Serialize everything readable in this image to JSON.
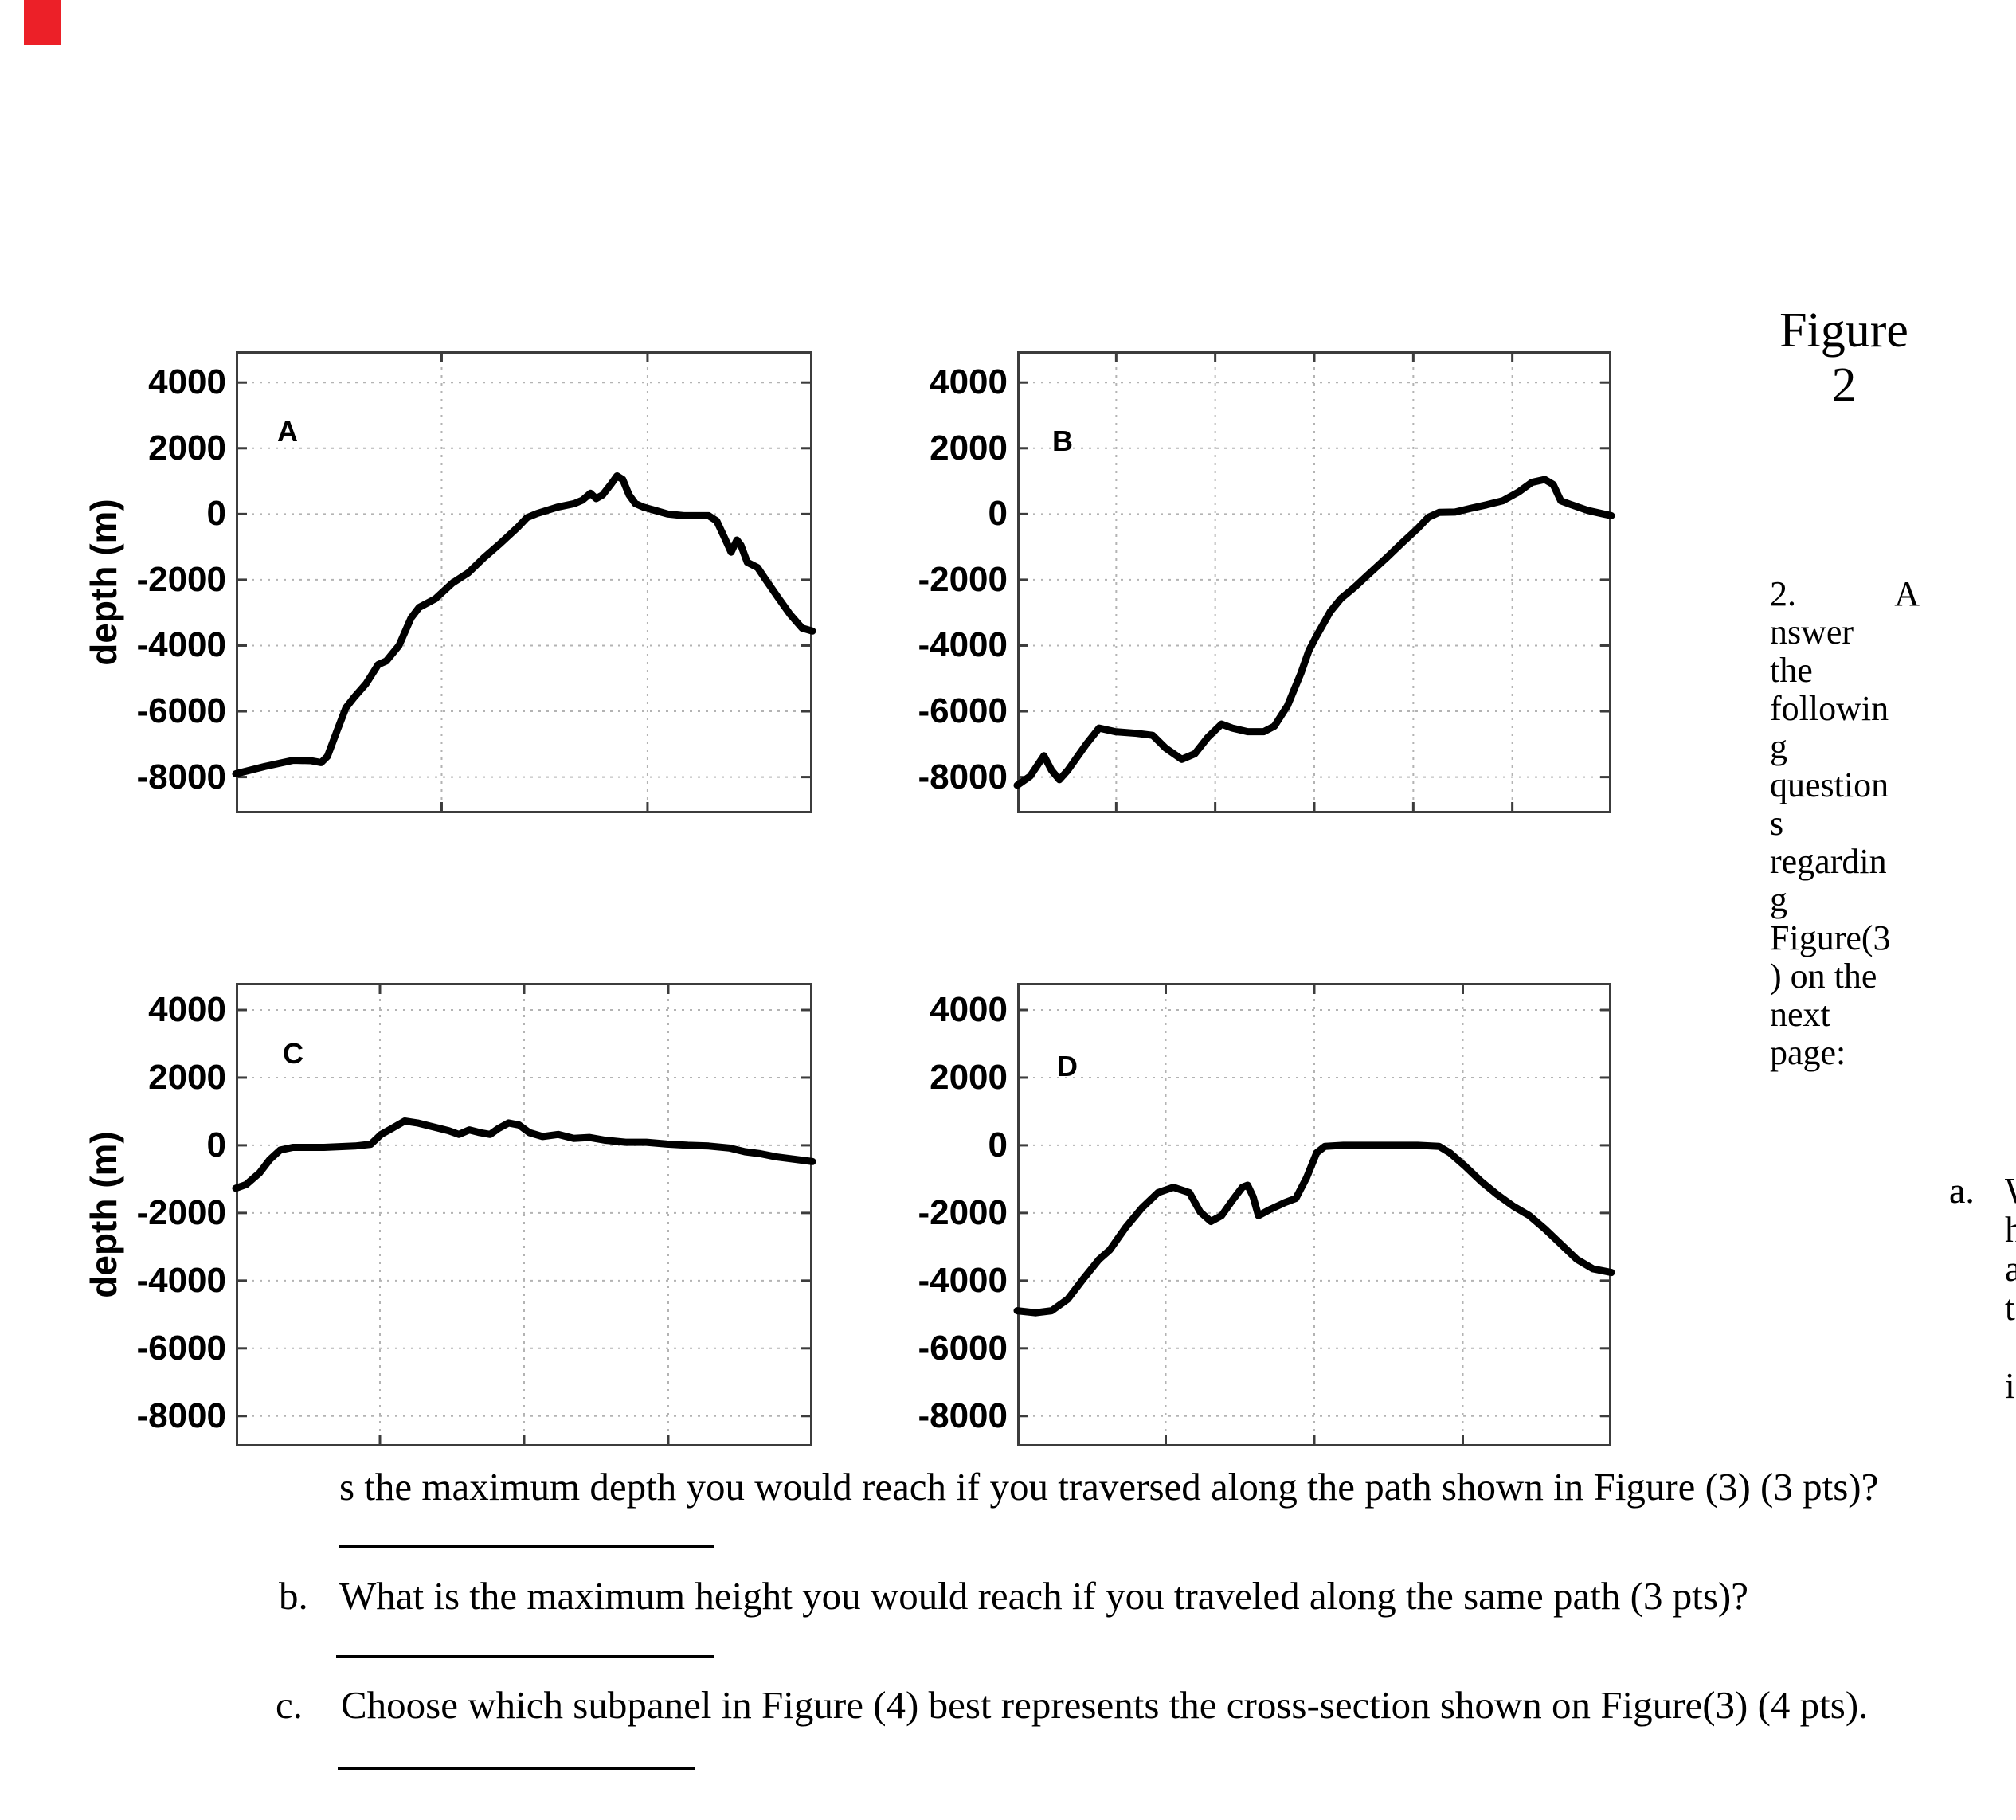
{
  "page": {
    "background": "#ffffff",
    "red_marker_color": "#ec2028",
    "curve_color": "#000000",
    "grid_color": "#b3b3b3",
    "frame_color": "#3c3c3c"
  },
  "figure_heading": {
    "line1": "Figure",
    "line2": "2"
  },
  "side_note": {
    "line1_left": "2.",
    "line1_right": "A",
    "lines": [
      "nswer",
      "the",
      "followin",
      "g",
      "question",
      "s",
      "regardin",
      "g",
      "Figure(3",
      ") on the",
      "next",
      "page:"
    ]
  },
  "item_a_marker": "a.",
  "edge_fragments": {
    "lines": [
      "W",
      "h",
      "a",
      "t",
      "",
      "i"
    ]
  },
  "questions": {
    "a_continuation": "s the maximum depth you would reach if you traversed along the path shown in Figure (3) (3 pts)?",
    "b_marker": "b.",
    "b_text": "What is the maximum height you would reach if you traveled along the same path (3 pts)?",
    "c_marker": "c.",
    "c_text": "Choose which subpanel in Figure (4) best represents the cross-section shown on Figure(3) (4 pts)."
  },
  "chart_data": [
    {
      "type": "line",
      "panel": "A",
      "ylabel": "depth (m)",
      "yticks": [
        4000,
        2000,
        0,
        -2000,
        -4000,
        -6000,
        -8000
      ],
      "ylim": [
        -9100,
        4950
      ],
      "x_gridlines": [
        0.357,
        0.714
      ],
      "grid": "dotted",
      "points": [
        [
          0,
          -7900
        ],
        [
          0.05,
          -7680
        ],
        [
          0.1,
          -7490
        ],
        [
          0.13,
          -7500
        ],
        [
          0.148,
          -7560
        ],
        [
          0.159,
          -7370
        ],
        [
          0.177,
          -6530
        ],
        [
          0.191,
          -5890
        ],
        [
          0.205,
          -5580
        ],
        [
          0.226,
          -5160
        ],
        [
          0.247,
          -4580
        ],
        [
          0.261,
          -4470
        ],
        [
          0.283,
          -4000
        ],
        [
          0.304,
          -3160
        ],
        [
          0.318,
          -2840
        ],
        [
          0.346,
          -2580
        ],
        [
          0.375,
          -2110
        ],
        [
          0.403,
          -1790
        ],
        [
          0.431,
          -1320
        ],
        [
          0.459,
          -890
        ],
        [
          0.488,
          -420
        ],
        [
          0.505,
          -110
        ],
        [
          0.523,
          20
        ],
        [
          0.558,
          210
        ],
        [
          0.587,
          315
        ],
        [
          0.601,
          420
        ],
        [
          0.615,
          630
        ],
        [
          0.625,
          470
        ],
        [
          0.636,
          580
        ],
        [
          0.65,
          890
        ],
        [
          0.661,
          1160
        ],
        [
          0.671,
          1050
        ],
        [
          0.682,
          580
        ],
        [
          0.693,
          315
        ],
        [
          0.707,
          210
        ],
        [
          0.728,
          105
        ],
        [
          0.749,
          0
        ],
        [
          0.777,
          -50
        ],
        [
          0.82,
          -50
        ],
        [
          0.834,
          -210
        ],
        [
          0.848,
          -740
        ],
        [
          0.859,
          -1160
        ],
        [
          0.869,
          -790
        ],
        [
          0.876,
          -950
        ],
        [
          0.887,
          -1470
        ],
        [
          0.905,
          -1630
        ],
        [
          0.919,
          -2000
        ],
        [
          0.94,
          -2530
        ],
        [
          0.961,
          -3050
        ],
        [
          0.982,
          -3470
        ],
        [
          1,
          -3560
        ]
      ]
    },
    {
      "type": "line",
      "panel": "B",
      "ylabel": "",
      "yticks": [
        4000,
        2000,
        0,
        -2000,
        -4000,
        -6000,
        -8000
      ],
      "ylim": [
        -9100,
        4950
      ],
      "x_gridlines": [
        0.1667,
        0.3333,
        0.5,
        0.6667,
        0.8333
      ],
      "grid": "dotted",
      "points": [
        [
          0,
          -8250
        ],
        [
          0.022,
          -7970
        ],
        [
          0.045,
          -7350
        ],
        [
          0.058,
          -7800
        ],
        [
          0.071,
          -8080
        ],
        [
          0.085,
          -7800
        ],
        [
          0.116,
          -7010
        ],
        [
          0.138,
          -6510
        ],
        [
          0.165,
          -6620
        ],
        [
          0.201,
          -6670
        ],
        [
          0.228,
          -6730
        ],
        [
          0.25,
          -7120
        ],
        [
          0.277,
          -7460
        ],
        [
          0.299,
          -7290
        ],
        [
          0.321,
          -6790
        ],
        [
          0.344,
          -6390
        ],
        [
          0.362,
          -6510
        ],
        [
          0.388,
          -6620
        ],
        [
          0.415,
          -6620
        ],
        [
          0.433,
          -6450
        ],
        [
          0.455,
          -5830
        ],
        [
          0.478,
          -4820
        ],
        [
          0.491,
          -4150
        ],
        [
          0.504,
          -3700
        ],
        [
          0.527,
          -2970
        ],
        [
          0.545,
          -2570
        ],
        [
          0.567,
          -2240
        ],
        [
          0.594,
          -1790
        ],
        [
          0.621,
          -1340
        ],
        [
          0.647,
          -890
        ],
        [
          0.674,
          -440
        ],
        [
          0.692,
          -100
        ],
        [
          0.71,
          50
        ],
        [
          0.737,
          60
        ],
        [
          0.763,
          170
        ],
        [
          0.79,
          280
        ],
        [
          0.817,
          400
        ],
        [
          0.844,
          670
        ],
        [
          0.866,
          960
        ],
        [
          0.888,
          1050
        ],
        [
          0.902,
          900
        ],
        [
          0.915,
          400
        ],
        [
          0.933,
          280
        ],
        [
          0.96,
          110
        ],
        [
          0.987,
          0
        ],
        [
          1,
          -50
        ]
      ]
    },
    {
      "type": "line",
      "panel": "C",
      "ylabel": "depth (m)",
      "yticks": [
        4000,
        2000,
        0,
        -2000,
        -4000,
        -6000,
        -8000
      ],
      "ylim": [
        -8900,
        4800
      ],
      "x_gridlines": [
        0.25,
        0.5,
        0.75
      ],
      "grid": "dotted",
      "points": [
        [
          0,
          -1270
        ],
        [
          0.018,
          -1160
        ],
        [
          0.041,
          -820
        ],
        [
          0.059,
          -420
        ],
        [
          0.077,
          -140
        ],
        [
          0.099,
          -60
        ],
        [
          0.153,
          -60
        ],
        [
          0.207,
          -20
        ],
        [
          0.234,
          30
        ],
        [
          0.252,
          320
        ],
        [
          0.27,
          490
        ],
        [
          0.293,
          715
        ],
        [
          0.315,
          660
        ],
        [
          0.342,
          545
        ],
        [
          0.369,
          430
        ],
        [
          0.387,
          320
        ],
        [
          0.405,
          455
        ],
        [
          0.423,
          375
        ],
        [
          0.441,
          320
        ],
        [
          0.455,
          490
        ],
        [
          0.473,
          660
        ],
        [
          0.491,
          600
        ],
        [
          0.509,
          375
        ],
        [
          0.532,
          260
        ],
        [
          0.559,
          320
        ],
        [
          0.586,
          205
        ],
        [
          0.613,
          230
        ],
        [
          0.64,
          150
        ],
        [
          0.676,
          90
        ],
        [
          0.712,
          90
        ],
        [
          0.748,
          35
        ],
        [
          0.784,
          0
        ],
        [
          0.82,
          -20
        ],
        [
          0.856,
          -80
        ],
        [
          0.883,
          -190
        ],
        [
          0.91,
          -250
        ],
        [
          0.937,
          -340
        ],
        [
          0.973,
          -420
        ],
        [
          1,
          -480
        ]
      ]
    },
    {
      "type": "line",
      "panel": "D",
      "ylabel": "",
      "yticks": [
        4000,
        2000,
        0,
        -2000,
        -4000,
        -6000,
        -8000
      ],
      "ylim": [
        -8900,
        4800
      ],
      "x_gridlines": [
        0.25,
        0.5,
        0.75
      ],
      "grid": "dotted",
      "points": [
        [
          0,
          -4890
        ],
        [
          0.031,
          -4950
        ],
        [
          0.058,
          -4890
        ],
        [
          0.085,
          -4550
        ],
        [
          0.112,
          -3930
        ],
        [
          0.138,
          -3370
        ],
        [
          0.156,
          -3090
        ],
        [
          0.183,
          -2420
        ],
        [
          0.21,
          -1850
        ],
        [
          0.237,
          -1400
        ],
        [
          0.263,
          -1240
        ],
        [
          0.29,
          -1400
        ],
        [
          0.308,
          -1970
        ],
        [
          0.326,
          -2250
        ],
        [
          0.344,
          -2080
        ],
        [
          0.362,
          -1630
        ],
        [
          0.379,
          -1240
        ],
        [
          0.388,
          -1180
        ],
        [
          0.397,
          -1520
        ],
        [
          0.406,
          -2080
        ],
        [
          0.424,
          -1910
        ],
        [
          0.451,
          -1690
        ],
        [
          0.469,
          -1570
        ],
        [
          0.487,
          -960
        ],
        [
          0.504,
          -220
        ],
        [
          0.518,
          -30
        ],
        [
          0.549,
          0
        ],
        [
          0.612,
          0
        ],
        [
          0.674,
          0
        ],
        [
          0.71,
          -30
        ],
        [
          0.728,
          -220
        ],
        [
          0.754,
          -620
        ],
        [
          0.781,
          -1070
        ],
        [
          0.808,
          -1460
        ],
        [
          0.835,
          -1800
        ],
        [
          0.862,
          -2080
        ],
        [
          0.888,
          -2470
        ],
        [
          0.915,
          -2920
        ],
        [
          0.942,
          -3370
        ],
        [
          0.969,
          -3650
        ],
        [
          1,
          -3760
        ]
      ]
    }
  ]
}
